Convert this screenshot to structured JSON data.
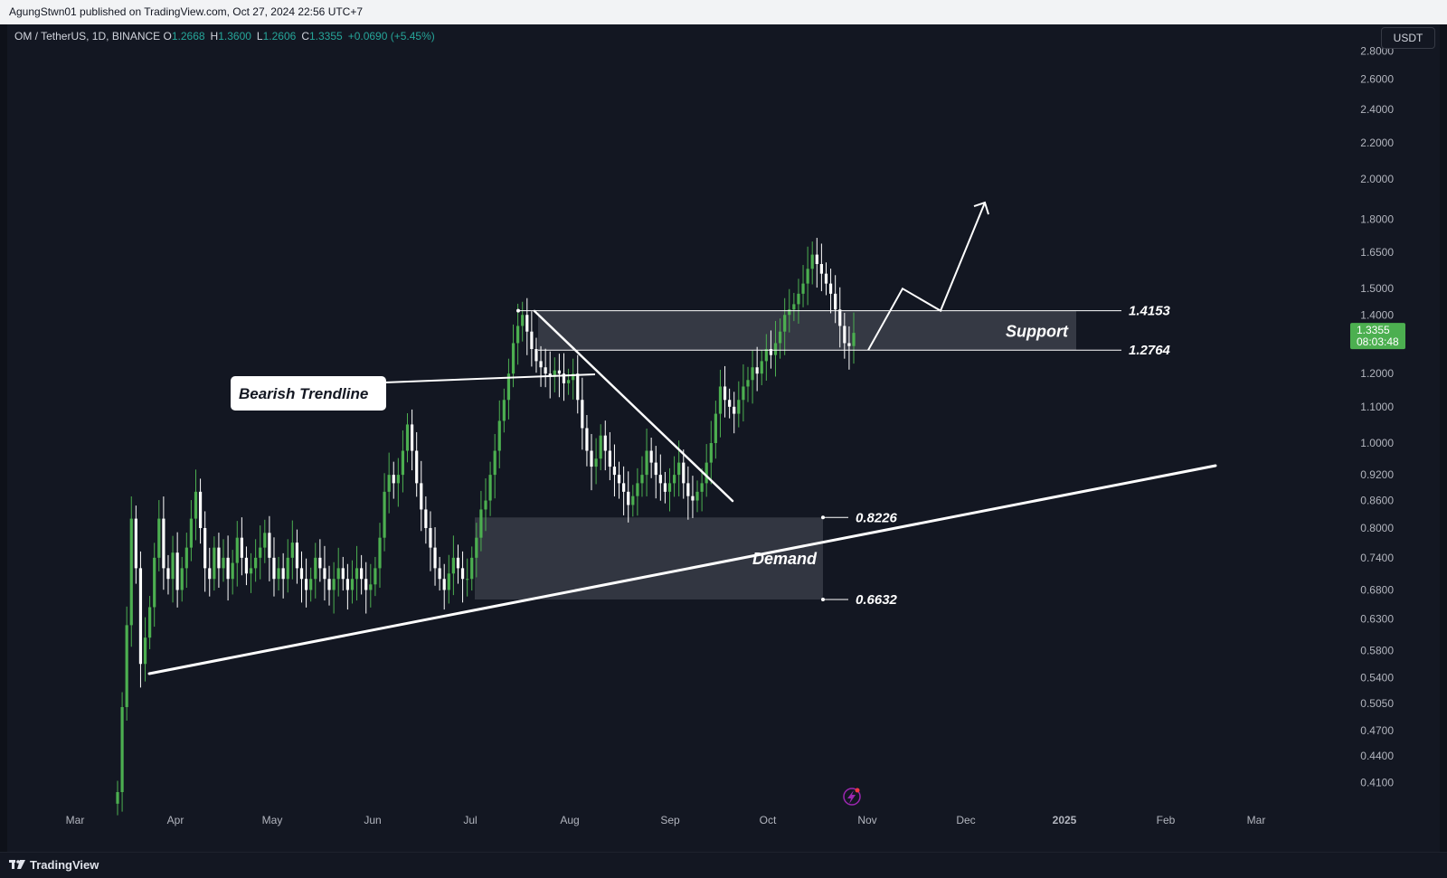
{
  "header": {
    "published_text": "AgungStwn01 published on TradingView.com, Oct 27, 2024 22:56 UTC+7"
  },
  "legend": {
    "symbol": "OM / TetherUS, 1D, BINANCE",
    "open_label": "O",
    "open": "1.2668",
    "high_label": "H",
    "high": "1.3600",
    "low_label": "L",
    "low": "1.2606",
    "close_label": "C",
    "close": "1.3355",
    "change": "+0.0690 (+5.45%)"
  },
  "currency_button": "USDT",
  "footer": {
    "brand": "TradingView"
  },
  "colors": {
    "background": "#131722",
    "up": "#4caf50",
    "down": "#ffffff",
    "price_tag": "#4caf50",
    "zone": "#363a45"
  },
  "chart_data": {
    "type": "candlestick",
    "symbol": "OM / TetherUS",
    "interval": "1D",
    "exchange": "BINANCE",
    "x_axis_ticks": [
      "Mar",
      "Apr",
      "May",
      "Jun",
      "Jul",
      "Aug",
      "Sep",
      "Oct",
      "Nov",
      "Dec",
      "2025",
      "Feb",
      "Mar"
    ],
    "y_axis_ticks": [
      "2.8000",
      "2.6000",
      "2.4000",
      "2.2000",
      "2.0000",
      "1.8000",
      "1.6500",
      "1.5000",
      "1.4000",
      "1.2000",
      "1.1000",
      "1.0000",
      "0.9200",
      "0.8600",
      "0.8000",
      "0.7400",
      "0.6800",
      "0.6300",
      "0.5800",
      "0.5400",
      "0.5050",
      "0.4700",
      "0.4400",
      "0.4100"
    ],
    "y_scale": "log",
    "current_price": "1.3355",
    "countdown": "08:03:48",
    "annotations": {
      "bearish_trendline_label": "Bearish Trendline",
      "support_label": "Support",
      "support_upper": "1.4153",
      "support_lower": "1.2764",
      "demand_label": "Demand",
      "demand_upper": "0.8226",
      "demand_lower": "0.6632"
    },
    "price_path": [
      0.4,
      0.5,
      0.62,
      0.82,
      0.72,
      0.56,
      0.6,
      0.65,
      0.74,
      0.82,
      0.72,
      0.7,
      0.75,
      0.68,
      0.72,
      0.76,
      0.82,
      0.88,
      0.8,
      0.72,
      0.7,
      0.76,
      0.72,
      0.74,
      0.7,
      0.73,
      0.78,
      0.74,
      0.71,
      0.72,
      0.74,
      0.76,
      0.79,
      0.74,
      0.7,
      0.72,
      0.7,
      0.74,
      0.77,
      0.72,
      0.7,
      0.68,
      0.7,
      0.74,
      0.72,
      0.7,
      0.68,
      0.7,
      0.72,
      0.7,
      0.68,
      0.7,
      0.72,
      0.7,
      0.68,
      0.69,
      0.72,
      0.78,
      0.88,
      0.92,
      0.9,
      0.92,
      0.98,
      1.05,
      0.98,
      0.9,
      0.84,
      0.8,
      0.76,
      0.72,
      0.7,
      0.68,
      0.71,
      0.74,
      0.72,
      0.7,
      0.7,
      0.74,
      0.78,
      0.84,
      0.86,
      0.92,
      0.98,
      1.06,
      1.12,
      1.2,
      1.3,
      1.36,
      1.4,
      1.34,
      1.28,
      1.24,
      1.22,
      1.2,
      1.19,
      1.21,
      1.2,
      1.17,
      1.18,
      1.2,
      1.12,
      1.04,
      0.98,
      0.94,
      0.96,
      1.02,
      0.98,
      0.94,
      0.92,
      0.9,
      0.88,
      0.85,
      0.87,
      0.9,
      0.92,
      0.98,
      0.95,
      0.92,
      0.9,
      0.88,
      0.9,
      0.92,
      0.95,
      0.9,
      0.87,
      0.86,
      0.88,
      0.9,
      0.95,
      1.0,
      1.08,
      1.16,
      1.12,
      1.1,
      1.08,
      1.12,
      1.16,
      1.18,
      1.22,
      1.2,
      1.24,
      1.28,
      1.26,
      1.3,
      1.34,
      1.4,
      1.42,
      1.44,
      1.48,
      1.52,
      1.58,
      1.64,
      1.6,
      1.56,
      1.52,
      1.48,
      1.42,
      1.36,
      1.3,
      1.29,
      1.3355
    ],
    "projection_path": [
      1.2764,
      1.5,
      1.4153,
      1.88
    ]
  }
}
